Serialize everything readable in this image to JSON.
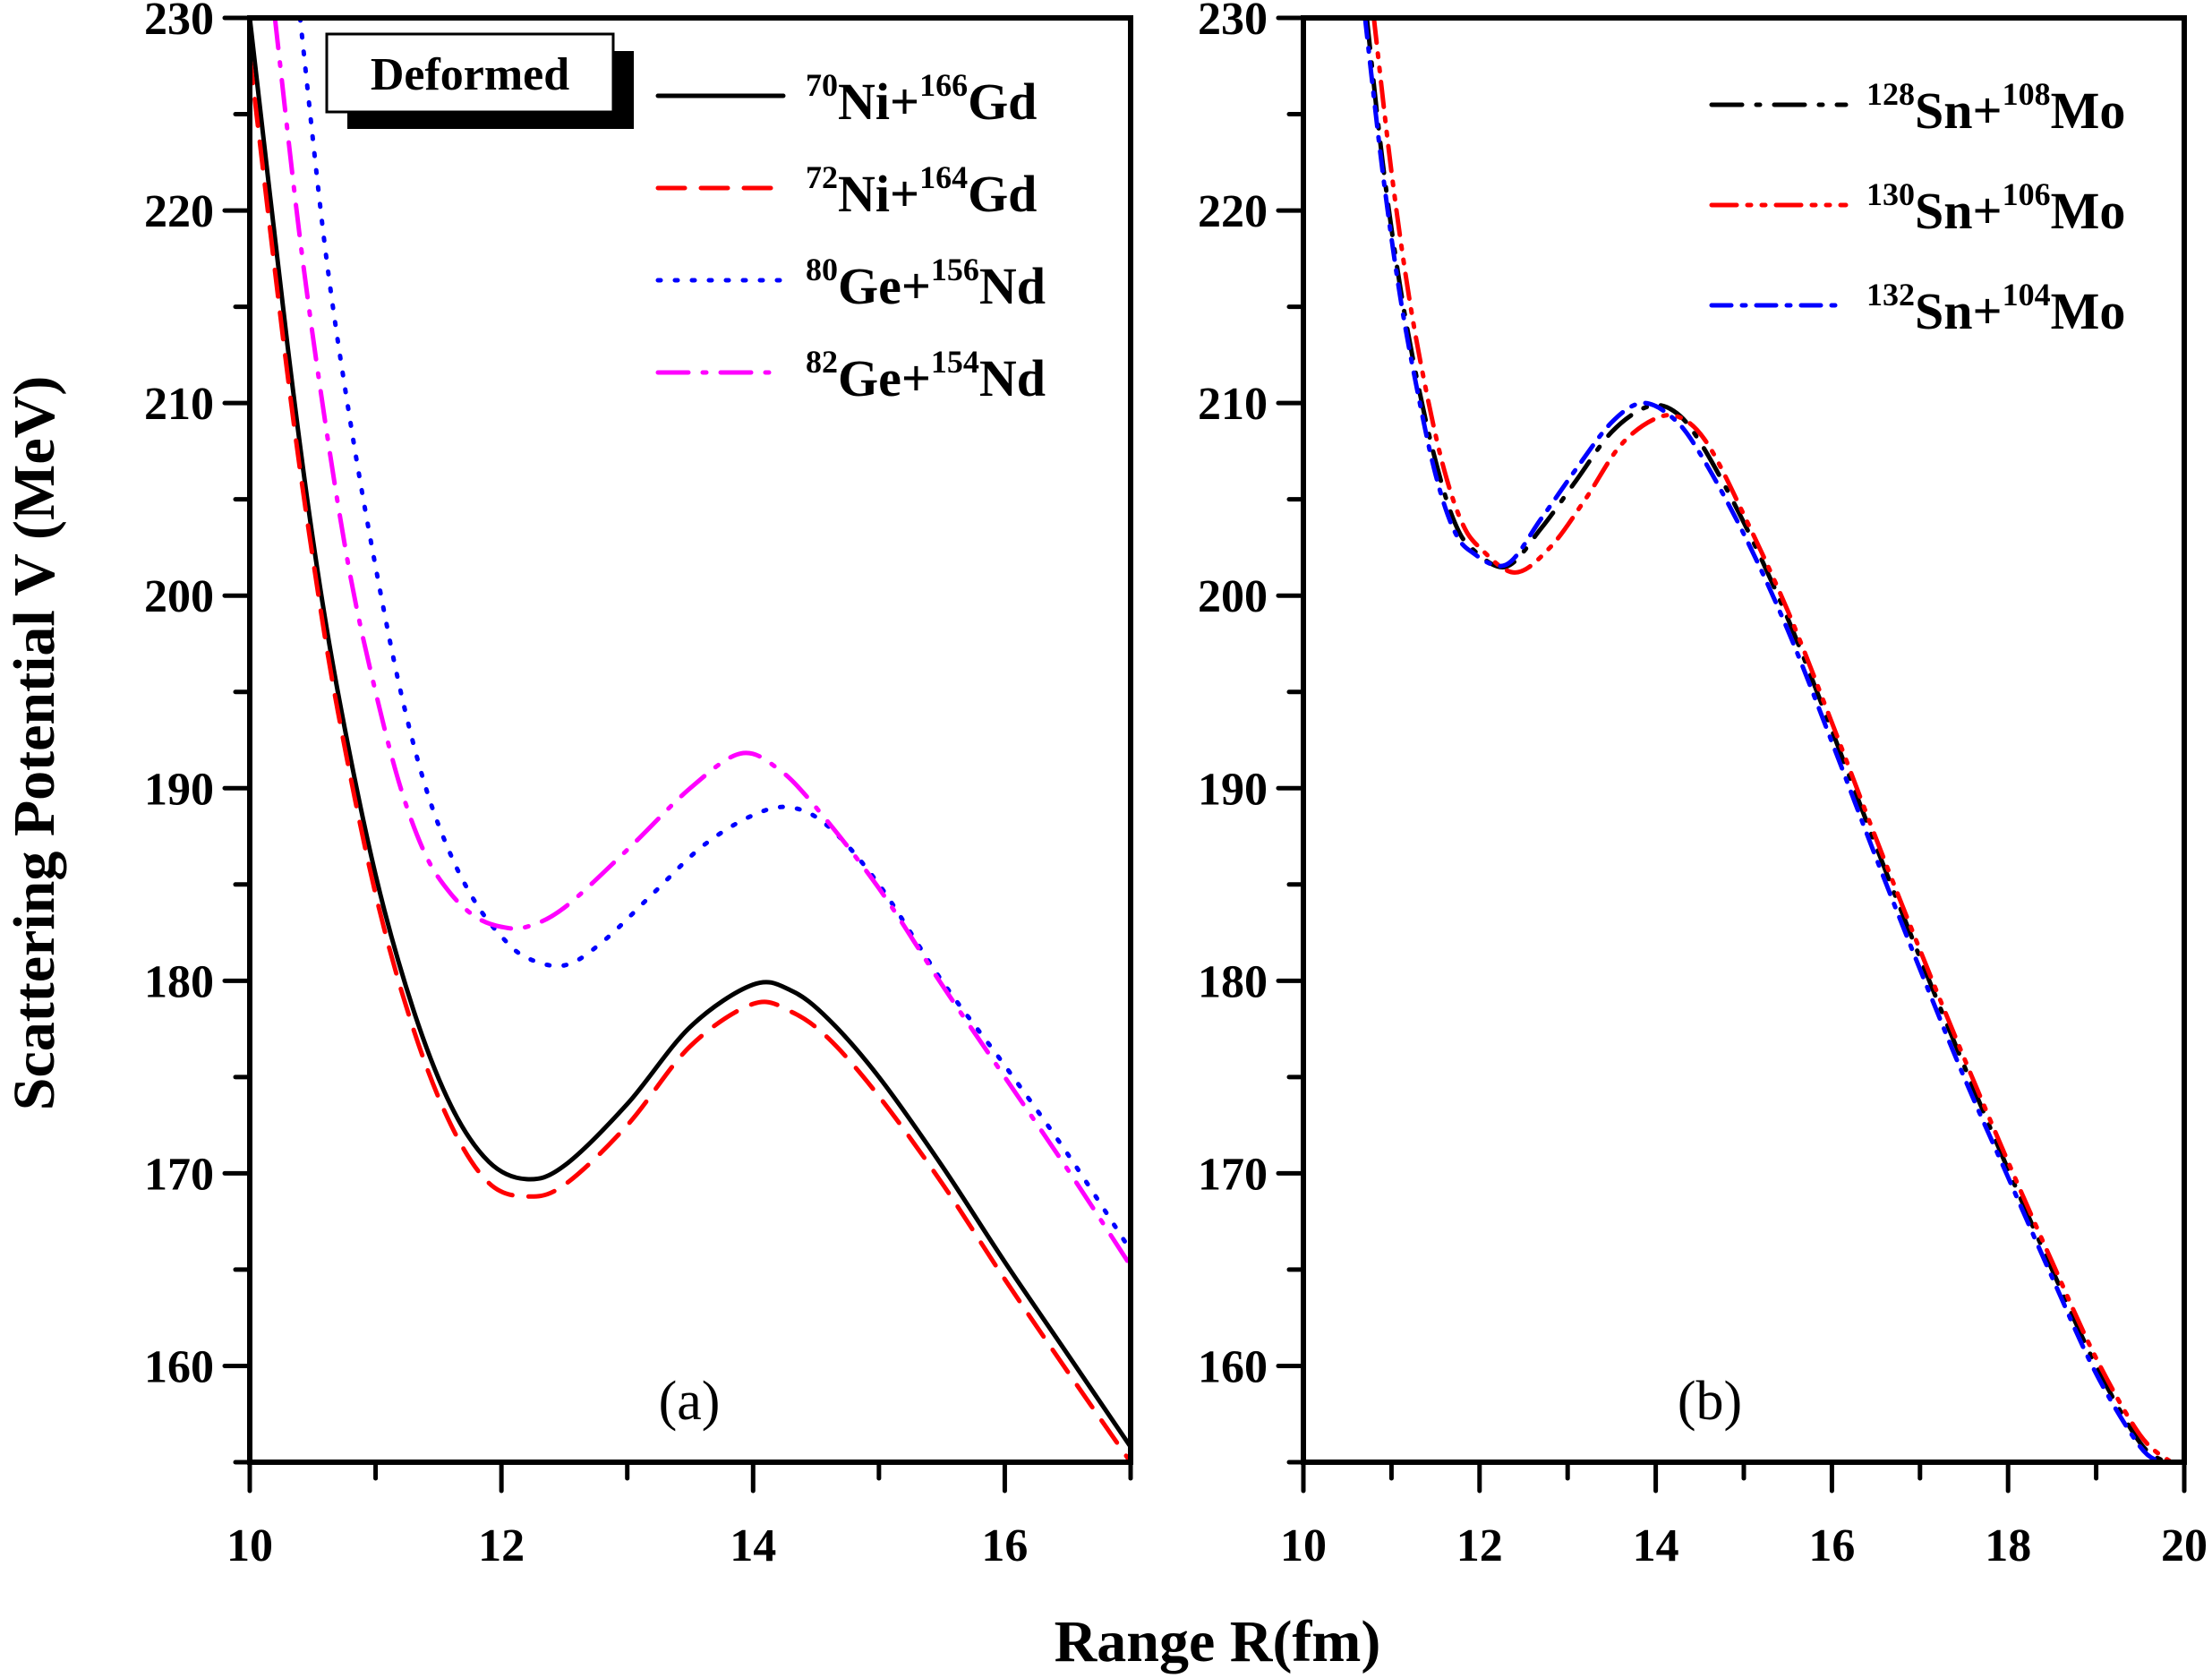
{
  "chart_data": [
    {
      "type": "line",
      "panel_label": "(a)",
      "annotation": "Deformed",
      "xlabel": "Range R(fm)",
      "ylabel": "Scattering Potential V (MeV)",
      "xlim": [
        10,
        17
      ],
      "ylim": [
        155,
        230
      ],
      "xticks": [
        10,
        12,
        14,
        16
      ],
      "xtick_labels": [
        "10",
        "12",
        "14",
        "16"
      ],
      "yticks": [
        160,
        170,
        180,
        190,
        200,
        210,
        220,
        230
      ],
      "ytick_labels": [
        "160",
        "170",
        "180",
        "190",
        "200",
        "210",
        "220",
        "230"
      ],
      "legend_position": "top-right",
      "series": [
        {
          "name": "70Ni+166Gd",
          "label_parts": {
            "a1": "70",
            "e1": "Ni",
            "a2": "166",
            "e2": "Gd"
          },
          "color": "#000000",
          "style": "solid",
          "x": [
            10.0,
            10.3,
            10.5,
            10.7,
            11.0,
            11.3,
            11.6,
            11.9,
            12.2,
            12.5,
            13.0,
            13.5,
            14.0,
            14.3,
            14.6,
            15.0,
            15.5,
            16.0,
            16.5,
            17.0
          ],
          "y": [
            230.0,
            213.0,
            203.0,
            195.0,
            185.5,
            178.5,
            173.5,
            170.6,
            169.7,
            170.4,
            173.6,
            177.6,
            179.8,
            179.5,
            178.0,
            175.0,
            170.4,
            165.4,
            160.6,
            155.8
          ]
        },
        {
          "name": "72Ni+164Gd",
          "label_parts": {
            "a1": "72",
            "e1": "Ni",
            "a2": "164",
            "e2": "Gd"
          },
          "color": "#ff0000",
          "style": "dashed",
          "x": [
            10.0,
            10.3,
            10.5,
            10.7,
            11.0,
            11.3,
            11.6,
            11.9,
            12.2,
            12.5,
            13.0,
            13.5,
            14.0,
            14.3,
            14.6,
            15.0,
            15.5,
            16.0,
            16.5,
            17.0
          ],
          "y": [
            228.0,
            211.5,
            202.0,
            194.0,
            184.5,
            177.5,
            172.5,
            169.5,
            168.8,
            169.4,
            172.5,
            176.6,
            178.8,
            178.4,
            177.0,
            174.0,
            169.5,
            164.5,
            159.7,
            155.0
          ]
        },
        {
          "name": "80Ge+156Nd",
          "label_parts": {
            "a1": "80",
            "e1": "Ge",
            "a2": "156",
            "e2": "Nd"
          },
          "color": "#0000ff",
          "style": "dotted",
          "x": [
            10.4,
            10.6,
            10.8,
            11.0,
            11.2,
            11.4,
            11.6,
            11.8,
            12.0,
            12.2,
            12.5,
            12.8,
            13.2,
            13.6,
            14.0,
            14.3,
            14.6,
            15.0,
            15.5,
            16.0,
            16.5,
            17.0
          ],
          "y": [
            230.0,
            218.0,
            209.0,
            201.5,
            195.0,
            190.0,
            186.5,
            184.0,
            182.3,
            181.2,
            180.8,
            182.0,
            184.5,
            187.0,
            188.6,
            189.0,
            188.0,
            185.0,
            180.0,
            175.6,
            171.0,
            166.0
          ]
        },
        {
          "name": "82Ge+154Nd",
          "label_parts": {
            "a1": "82",
            "e1": "Ge",
            "a2": "154",
            "e2": "Nd"
          },
          "color": "#ff00ff",
          "style": "dashdot",
          "x": [
            10.2,
            10.4,
            10.6,
            10.8,
            11.0,
            11.2,
            11.4,
            11.6,
            11.8,
            12.0,
            12.2,
            12.5,
            13.0,
            13.5,
            13.9,
            14.2,
            14.5,
            15.0,
            15.5,
            16.0,
            16.5,
            17.0
          ],
          "y": [
            230.0,
            218.5,
            209.0,
            201.0,
            195.0,
            190.0,
            186.5,
            184.5,
            183.3,
            182.8,
            182.8,
            183.8,
            186.8,
            190.0,
            191.8,
            191.0,
            189.0,
            184.8,
            179.8,
            175.0,
            170.2,
            165.2
          ]
        }
      ]
    },
    {
      "type": "line",
      "panel_label": "(b)",
      "xlabel": "Range R(fm)",
      "xlim": [
        10,
        20
      ],
      "ylim": [
        155,
        230
      ],
      "xticks": [
        10,
        12,
        14,
        16,
        18,
        20
      ],
      "xtick_labels": [
        "10",
        "12",
        "14",
        "16",
        "18",
        "20"
      ],
      "yticks": [
        160,
        170,
        180,
        190,
        200,
        210,
        220,
        230
      ],
      "ytick_labels": [
        "160",
        "170",
        "180",
        "190",
        "200",
        "210",
        "220",
        "230"
      ],
      "legend_position": "top-right",
      "series": [
        {
          "name": "128Sn+108Mo",
          "label_parts": {
            "a1": "128",
            "e1": "Sn",
            "a2": "108",
            "e2": "Mo"
          },
          "color": "#000000",
          "style": "dashdot",
          "x": [
            10.72,
            10.9,
            11.1,
            11.3,
            11.5,
            11.7,
            11.9,
            12.3,
            12.7,
            13.1,
            13.5,
            13.9,
            14.2,
            14.5,
            15.0,
            15.5,
            16.0,
            16.5,
            17.0,
            17.5,
            18.0,
            18.5,
            19.0,
            19.5,
            19.8
          ],
          "y": [
            230.0,
            222.5,
            216.0,
            211.0,
            207.0,
            204.0,
            202.5,
            201.5,
            203.5,
            206.0,
            208.5,
            209.8,
            209.6,
            208.0,
            203.8,
            198.8,
            193.0,
            187.0,
            181.2,
            175.6,
            170.2,
            165.0,
            160.0,
            156.0,
            155.0
          ]
        },
        {
          "name": "130Sn+106Mo",
          "label_parts": {
            "a1": "130",
            "e1": "Sn",
            "a2": "106",
            "e2": "Mo"
          },
          "color": "#ff0000",
          "style": "dashdotdot",
          "x": [
            10.8,
            11.0,
            11.2,
            11.4,
            11.6,
            11.8,
            12.0,
            12.4,
            12.8,
            13.2,
            13.6,
            14.0,
            14.3,
            14.6,
            15.0,
            15.5,
            16.0,
            16.5,
            17.0,
            17.5,
            18.0,
            18.5,
            19.0,
            19.5,
            19.85
          ],
          "y": [
            230.0,
            222.0,
            215.5,
            210.5,
            206.5,
            203.8,
            202.5,
            201.2,
            202.5,
            205.0,
            207.8,
            209.2,
            209.2,
            207.8,
            204.2,
            199.2,
            193.4,
            187.4,
            181.6,
            176.0,
            170.6,
            165.4,
            160.4,
            156.4,
            155.0
          ]
        },
        {
          "name": "132Sn+104Mo",
          "label_parts": {
            "a1": "132",
            "e1": "Sn",
            "a2": "104",
            "e2": "Mo"
          },
          "color": "#0000ff",
          "style": "dashdot-short",
          "x": [
            10.7,
            10.9,
            11.1,
            11.3,
            11.5,
            11.7,
            11.9,
            12.3,
            12.7,
            13.1,
            13.5,
            13.85,
            14.2,
            14.5,
            15.0,
            15.5,
            16.0,
            16.5,
            17.0,
            17.5,
            18.0,
            18.5,
            19.0,
            19.5,
            19.75
          ],
          "y": [
            230.0,
            222.0,
            215.5,
            210.5,
            206.3,
            203.5,
            202.3,
            201.6,
            204.0,
            206.6,
            209.0,
            210.0,
            209.2,
            207.4,
            203.2,
            198.2,
            192.4,
            186.4,
            180.6,
            175.0,
            169.8,
            164.6,
            159.6,
            155.8,
            155.0
          ]
        }
      ]
    }
  ]
}
